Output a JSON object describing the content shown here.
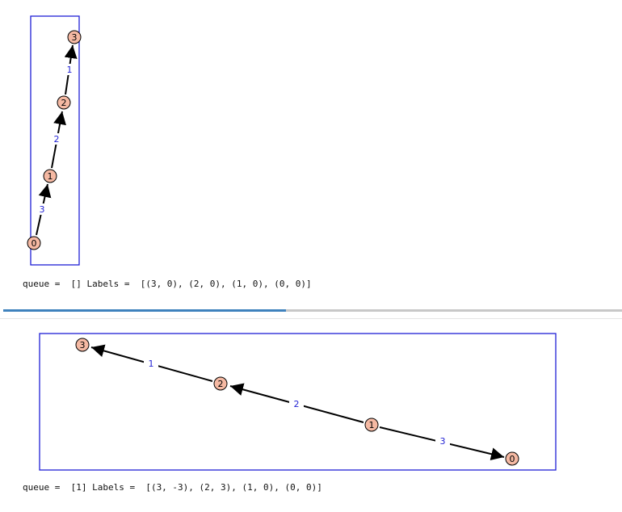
{
  "colors": {
    "frame": "#1f1fd6",
    "node_fill": "#f5b9a3",
    "edge_label": "#2424d4",
    "progress": "#3f82bd"
  },
  "cell1": {
    "output_text": "queue =  [] Labels =  [(3, 0), (2, 0), (1, 0), (0, 0)]",
    "nodes": [
      "0",
      "1",
      "2",
      "3"
    ],
    "edges": [
      {
        "from": "0",
        "to": "1",
        "label": "3"
      },
      {
        "from": "1",
        "to": "2",
        "label": "2"
      },
      {
        "from": "2",
        "to": "3",
        "label": "1"
      }
    ]
  },
  "progress": {
    "fraction": 0.457
  },
  "cell2": {
    "output_text": "queue =  [1] Labels =  [(3, -3), (2, 3), (1, 0), (0, 0)]",
    "nodes": [
      "3",
      "2",
      "1",
      "0"
    ],
    "edges": [
      {
        "from": "2",
        "to": "3",
        "label": "1"
      },
      {
        "from": "1",
        "to": "2",
        "label": "2"
      },
      {
        "from": "1",
        "to": "0",
        "label": "3"
      }
    ]
  }
}
